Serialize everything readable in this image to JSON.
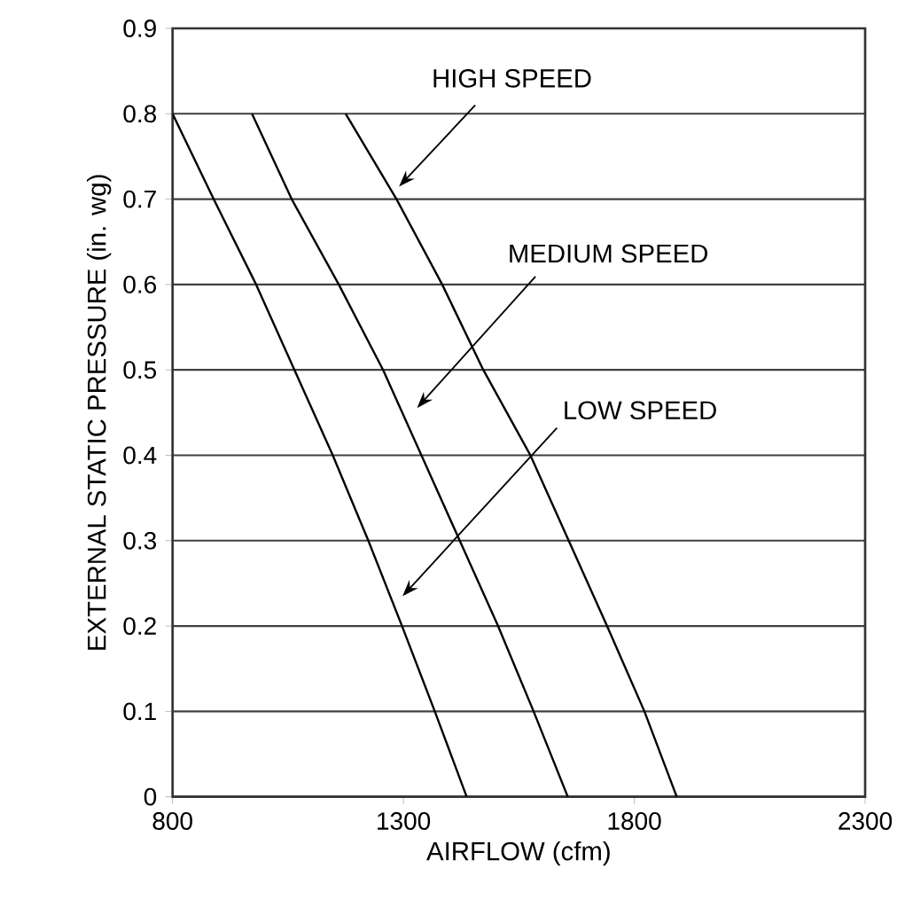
{
  "chart_data": {
    "type": "line",
    "xlabel": "AIRFLOW (cfm)",
    "ylabel": "EXTERNAL STATIC PRESSURE (in. wg)",
    "xlim": [
      800,
      2300
    ],
    "ylim": [
      0,
      0.9
    ],
    "xticks": [
      800,
      1300,
      1800,
      2300
    ],
    "yticks": [
      0,
      0.1,
      0.2,
      0.3,
      0.4,
      0.5,
      0.6,
      0.7,
      0.8,
      0.9
    ],
    "grid": "y",
    "marker": "none",
    "line_style": "solid",
    "series": [
      {
        "color": "#000000",
        "x": [
          800,
          889,
          981,
          1064,
          1147,
          1224,
          1297,
          1368,
          1437
        ],
        "values": [
          0.8,
          0.7,
          0.6,
          0.5,
          0.4,
          0.3,
          0.2,
          0.1,
          0
        ]
      },
      {
        "color": "#000000",
        "x": [
          972,
          1058,
          1160,
          1256,
          1339,
          1422,
          1505,
          1582,
          1656
        ],
        "values": [
          0.8,
          0.7,
          0.6,
          0.5,
          0.4,
          0.3,
          0.2,
          0.1,
          0
        ]
      },
      {
        "color": "#000000",
        "x": [
          1175,
          1285,
          1384,
          1473,
          1575,
          1658,
          1741,
          1822,
          1892
        ],
        "values": [
          0.8,
          0.7,
          0.6,
          0.5,
          0.4,
          0.3,
          0.2,
          0.1,
          0
        ]
      }
    ],
    "annotations": [
      "HIGH SPEED",
      "MEDIUM SPEED",
      "LOW SPEED"
    ]
  }
}
